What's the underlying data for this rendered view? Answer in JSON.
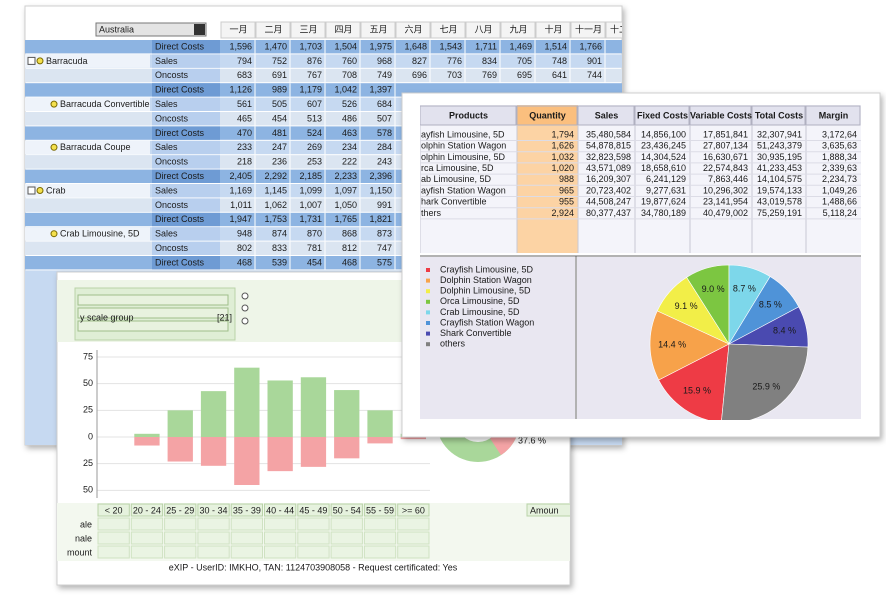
{
  "pivot": {
    "filter": "Australia",
    "months": [
      "一月",
      "二月",
      "三月",
      "四月",
      "五月",
      "六月",
      "七月",
      "八月",
      "九月",
      "十月",
      "十一月",
      "十二月"
    ],
    "rows": [
      {
        "measure": "Direct Costs",
        "cells": [
          "1,596",
          "1,470",
          "1,703",
          "1,504",
          "1,975",
          "1,648",
          "1,543",
          "1,711",
          "1,469",
          "1,514",
          "1,766"
        ]
      },
      {
        "label": "Barracuda",
        "measure": "Sales",
        "cells": [
          "794",
          "752",
          "876",
          "760",
          "968",
          "827",
          "776",
          "834",
          "705",
          "748",
          "901"
        ]
      },
      {
        "measure": "Oncosts",
        "cells": [
          "683",
          "691",
          "767",
          "708",
          "749",
          "696",
          "703",
          "769",
          "695",
          "641",
          "744"
        ]
      },
      {
        "measure": "Direct Costs",
        "cells": [
          "1,126",
          "989",
          "1,179",
          "1,042",
          "1,397"
        ]
      },
      {
        "label": "Barracuda Convertible",
        "measure": "Sales",
        "cells": [
          "561",
          "505",
          "607",
          "526",
          "684"
        ]
      },
      {
        "measure": "Oncosts",
        "cells": [
          "465",
          "454",
          "513",
          "486",
          "507"
        ]
      },
      {
        "measure": "Direct Costs",
        "cells": [
          "470",
          "481",
          "524",
          "463",
          "578"
        ]
      },
      {
        "label": "Barracuda Coupe",
        "measure": "Sales",
        "cells": [
          "233",
          "247",
          "269",
          "234",
          "284"
        ]
      },
      {
        "measure": "Oncosts",
        "cells": [
          "218",
          "236",
          "253",
          "222",
          "243"
        ]
      },
      {
        "measure": "Direct Costs",
        "cells": [
          "2,405",
          "2,292",
          "2,185",
          "2,233",
          "2,396"
        ]
      },
      {
        "label": "Crab",
        "measure": "Sales",
        "cells": [
          "1,169",
          "1,145",
          "1,099",
          "1,097",
          "1,150"
        ]
      },
      {
        "measure": "Oncosts",
        "cells": [
          "1,011",
          "1,062",
          "1,007",
          "1,050",
          "991"
        ]
      },
      {
        "measure": "Direct Costs",
        "cells": [
          "1,947",
          "1,753",
          "1,731",
          "1,765",
          "1,821"
        ]
      },
      {
        "label": "Crab Limousine, 5D",
        "measure": "Sales",
        "cells": [
          "948",
          "874",
          "870",
          "868",
          "873"
        ]
      },
      {
        "measure": "Oncosts",
        "cells": [
          "802",
          "833",
          "781",
          "812",
          "747"
        ]
      },
      {
        "measure": "Direct Costs",
        "cells": [
          "468",
          "539",
          "454",
          "468",
          "575"
        ]
      }
    ]
  },
  "products": {
    "columns": [
      "Products",
      "Quantity",
      "Sales",
      "Fixed Costs",
      "Variable Costs",
      "Total Costs",
      "Margin"
    ],
    "rows": [
      [
        "ayfish Limousine, 5D",
        "1,794",
        "35,480,584",
        "14,856,100",
        "17,851,841",
        "32,307,941",
        "3,172,64"
      ],
      [
        "olphin Station Wagon",
        "1,626",
        "54,878,815",
        "23,436,245",
        "27,807,134",
        "51,243,379",
        "3,635,63"
      ],
      [
        "olphin Limousine, 5D",
        "1,032",
        "32,823,598",
        "14,304,524",
        "16,630,671",
        "30,935,195",
        "1,888,34"
      ],
      [
        "rca Limousine, 5D",
        "1,020",
        "43,571,089",
        "18,658,610",
        "22,574,843",
        "41,233,453",
        "2,339,63"
      ],
      [
        "ab Limousine, 5D",
        "988",
        "16,209,307",
        "6,241,129",
        "7,863,446",
        "14,104,575",
        "2,234,73"
      ],
      [
        "ayfish Station Wagon",
        "965",
        "20,723,402",
        "9,277,631",
        "10,296,302",
        "19,574,133",
        "1,049,26"
      ],
      [
        "hark Convertible",
        "955",
        "44,508,247",
        "19,877,624",
        "23,141,954",
        "43,019,578",
        "1,488,66"
      ],
      [
        "thers",
        "2,924",
        "80,377,437",
        "34,780,189",
        "40,479,002",
        "75,259,191",
        "5,118,24"
      ]
    ]
  },
  "chart_data": [
    {
      "type": "pie",
      "categories": [
        "Crayfish Limousine, 5D",
        "Dolphin Station Wagon",
        "Dolphin Limousine, 5D",
        "Orca Limousine, 5D",
        "Crab Limousine, 5D",
        "Crayfish Station Wagon",
        "Shark Convertible",
        "others"
      ],
      "values": [
        15.9,
        14.4,
        9.1,
        9.0,
        8.7,
        8.5,
        8.4,
        25.9
      ],
      "value_labels": [
        "15.9 %",
        "14.4 %",
        "9.1 %",
        "9.0 %",
        "8.7 %",
        "8.5 %",
        "8.4 %",
        "25.9 %"
      ],
      "colors": [
        "#ee3b45",
        "#f7a24a",
        "#f2ee48",
        "#7cc641",
        "#7dd7ea",
        "#4f93d8",
        "#4a4ab0",
        "#808080"
      ]
    },
    {
      "type": "bar",
      "categories": [
        "< 20",
        "20 - 24",
        "25 - 29",
        "30 - 34",
        "35 - 39",
        "40 - 44",
        "45 - 49",
        "50 - 54",
        "55 - 59",
        ">= 60"
      ],
      "series": [
        {
          "color": "#a9d79a",
          "values": [
            null,
            3,
            25,
            43,
            65,
            53,
            56,
            44,
            25,
            3
          ]
        },
        {
          "color": "#f4a3a5",
          "values": [
            null,
            -8,
            -23,
            -27,
            -45,
            -32,
            -28,
            -20,
            -6,
            -2
          ]
        }
      ],
      "ylim": [
        -55,
        75
      ],
      "yticks": [
        75,
        50,
        25,
        0,
        {
          "value": -25,
          "label": "25"
        },
        {
          "value": -50,
          "label": "50"
        }
      ],
      "grid": true
    },
    {
      "type": "donut",
      "values": [
        37.6
      ],
      "value_labels": [
        "37.6 %"
      ],
      "colors": [
        "#f4a3a5",
        "#a9d79a"
      ]
    }
  ],
  "panel": {
    "control": "y scale group",
    "control_count": "[21]",
    "grid_header_last": "Amoun",
    "grid_rows": [
      "ale",
      "nale",
      "mount"
    ],
    "footer": "eXIP - UserID: IMKHO, TAN: 1124703908058 - Request certificated: Yes"
  }
}
